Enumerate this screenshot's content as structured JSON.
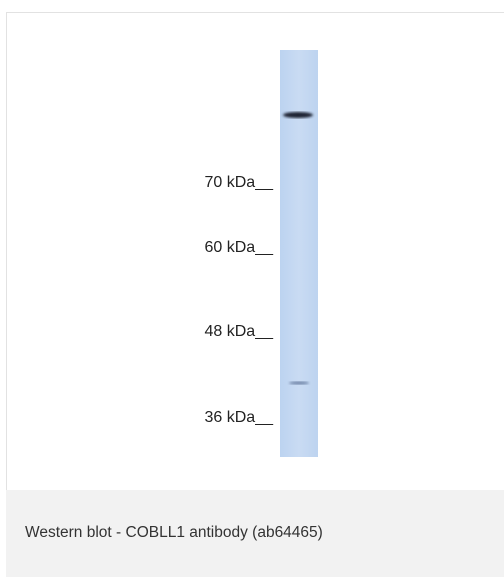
{
  "figure": {
    "markers": [
      "70 kDa__",
      "60 kDa__",
      "48 kDa__",
      "36 kDa__"
    ],
    "caption": "Western blot - COBLL1 antibody (ab64465)"
  }
}
